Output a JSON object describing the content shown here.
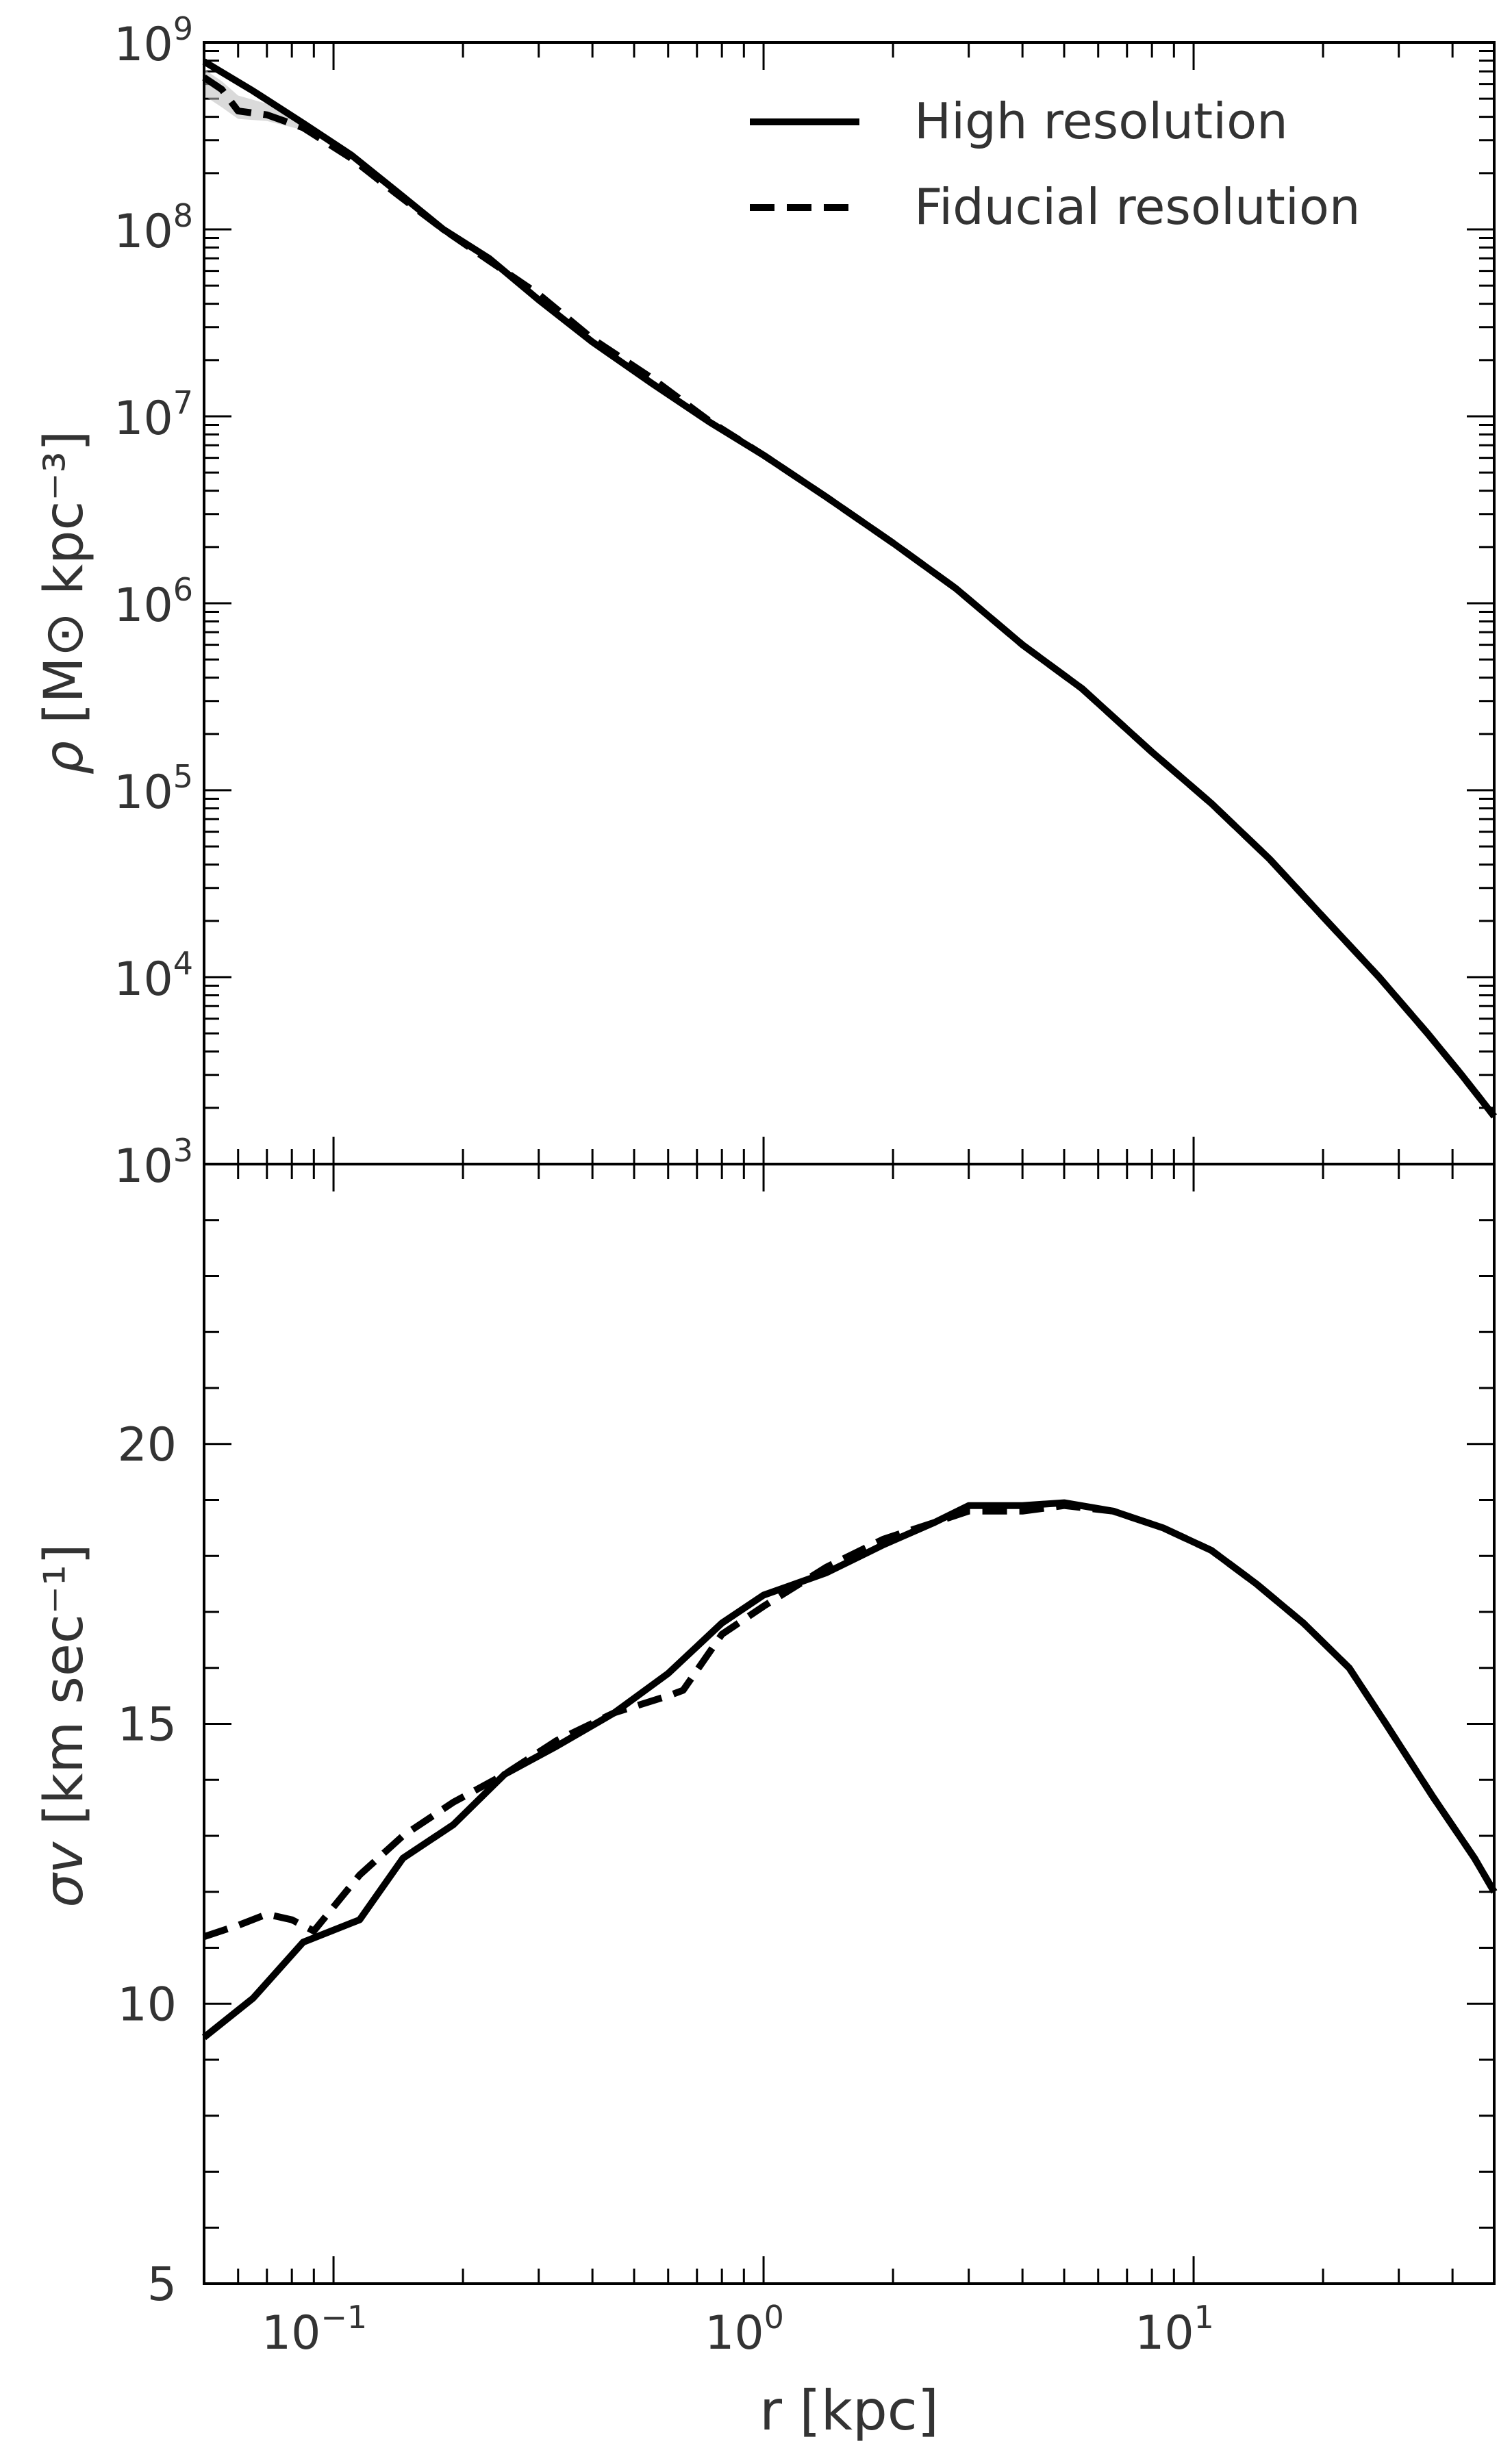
{
  "chart_data": [
    {
      "type": "line",
      "panel": "top",
      "title": "",
      "xlabel": "",
      "ylabel": "ρ",
      "ylabel_units": "[M⊙ kpc⁻³]",
      "xscale": "log",
      "yscale": "log",
      "xlim": [
        0.05,
        50
      ],
      "ylim": [
        1000,
        1000000000
      ],
      "yticks": [
        {
          "base": "10",
          "exp": "3",
          "value": 1000
        },
        {
          "base": "10",
          "exp": "4",
          "value": 10000
        },
        {
          "base": "10",
          "exp": "5",
          "value": 100000
        },
        {
          "base": "10",
          "exp": "6",
          "value": 1000000
        },
        {
          "base": "10",
          "exp": "7",
          "value": 10000000
        },
        {
          "base": "10",
          "exp": "8",
          "value": 100000000
        },
        {
          "base": "10",
          "exp": "9",
          "value": 1000000000
        }
      ],
      "legend": {
        "placement": "top-right",
        "entries": [
          {
            "label": "High resolution",
            "style": "solid"
          },
          {
            "label": "Fiducial resolution",
            "style": "dashed"
          }
        ]
      },
      "series": [
        {
          "name": "High resolution",
          "style": "solid",
          "x": [
            0.05,
            0.065,
            0.085,
            0.11,
            0.14,
            0.18,
            0.23,
            0.3,
            0.4,
            0.55,
            0.75,
            1.0,
            1.4,
            2.0,
            2.8,
            4.0,
            5.5,
            8.0,
            11.0,
            15.0,
            20.0,
            27.0,
            35.0,
            42.0,
            50.0
          ],
          "y": [
            790000000,
            550000000,
            370000000,
            250000000,
            160000000,
            100000000,
            70000000,
            42000000,
            25000000,
            15000000,
            9300000,
            6200000,
            3700000,
            2100000,
            1200000,
            600000,
            350000,
            160000,
            85000,
            43000,
            21000,
            10000,
            5000,
            3000,
            1800
          ]
        },
        {
          "name": "Fiducial resolution",
          "style": "dashed",
          "x": [
            0.05,
            0.055,
            0.06,
            0.07,
            0.085,
            0.11,
            0.14,
            0.18,
            0.23,
            0.3,
            0.4,
            0.55,
            0.75,
            1.0,
            1.4,
            2.0,
            2.8,
            4.0,
            5.5,
            8.0,
            11.0,
            15.0,
            20.0,
            27.0,
            35.0,
            42.0,
            50.0
          ],
          "y": [
            650000000,
            560000000,
            430000000,
            410000000,
            350000000,
            240000000,
            155000000,
            100000000,
            68000000,
            45000000,
            26000000,
            16000000,
            9400000,
            6200000,
            3700000,
            2100000,
            1200000,
            600000,
            350000,
            160000,
            85000,
            43000,
            21000,
            10000,
            5000,
            3000,
            1800
          ]
        }
      ],
      "band": {
        "x": [
          0.05,
          0.055,
          0.06,
          0.07,
          0.085
        ],
        "y_low": [
          520000000,
          450000000,
          390000000,
          380000000,
          340000000
        ],
        "y_high": [
          720000000,
          620000000,
          520000000,
          470000000,
          380000000
        ]
      }
    },
    {
      "type": "line",
      "panel": "bottom",
      "title": "",
      "xlabel": "r  [kpc]",
      "ylabel": "σv",
      "ylabel_units": "[km sec⁻¹]",
      "xscale": "log",
      "yscale": "linear",
      "xlim": [
        0.05,
        50
      ],
      "ylim": [
        5,
        25
      ],
      "yticks": [
        "5",
        "10",
        "15",
        "20"
      ],
      "xticks": [
        {
          "base": "10",
          "exp": "−1",
          "value": 0.1
        },
        {
          "base": "10",
          "exp": "0",
          "value": 1
        },
        {
          "base": "10",
          "exp": "1",
          "value": 10
        }
      ],
      "series": [
        {
          "name": "High resolution",
          "style": "solid",
          "x": [
            0.05,
            0.065,
            0.085,
            0.115,
            0.145,
            0.19,
            0.25,
            0.33,
            0.45,
            0.6,
            0.8,
            1.0,
            1.4,
            1.9,
            2.5,
            3.0,
            4.0,
            5.0,
            6.5,
            8.5,
            11.0,
            14.0,
            18.0,
            23.0,
            28.0,
            36.0,
            45.0,
            50.0
          ],
          "y": [
            9.4,
            10.1,
            11.1,
            11.5,
            12.6,
            13.2,
            14.1,
            14.6,
            15.2,
            15.9,
            16.8,
            17.3,
            17.7,
            18.2,
            18.6,
            18.9,
            18.9,
            18.95,
            18.8,
            18.5,
            18.1,
            17.5,
            16.8,
            16.0,
            15.0,
            13.7,
            12.6,
            12.0
          ]
        },
        {
          "name": "Fiducial resolution",
          "style": "dashed",
          "x": [
            0.05,
            0.06,
            0.07,
            0.08,
            0.09,
            0.115,
            0.145,
            0.19,
            0.25,
            0.33,
            0.45,
            0.6,
            0.65,
            0.8,
            1.0,
            1.4,
            1.9,
            2.5,
            3.0,
            4.0,
            5.0,
            6.5,
            8.5,
            11.0,
            14.0,
            18.0,
            23.0,
            28.0,
            36.0,
            45.0,
            50.0
          ],
          "y": [
            11.2,
            11.4,
            11.6,
            11.5,
            11.3,
            12.3,
            13.0,
            13.6,
            14.1,
            14.7,
            15.2,
            15.5,
            15.6,
            16.6,
            17.1,
            17.8,
            18.3,
            18.6,
            18.8,
            18.8,
            18.9,
            18.8,
            18.5,
            18.1,
            17.5,
            16.8,
            16.0,
            15.0,
            13.7,
            12.6,
            12.0
          ]
        }
      ]
    }
  ]
}
